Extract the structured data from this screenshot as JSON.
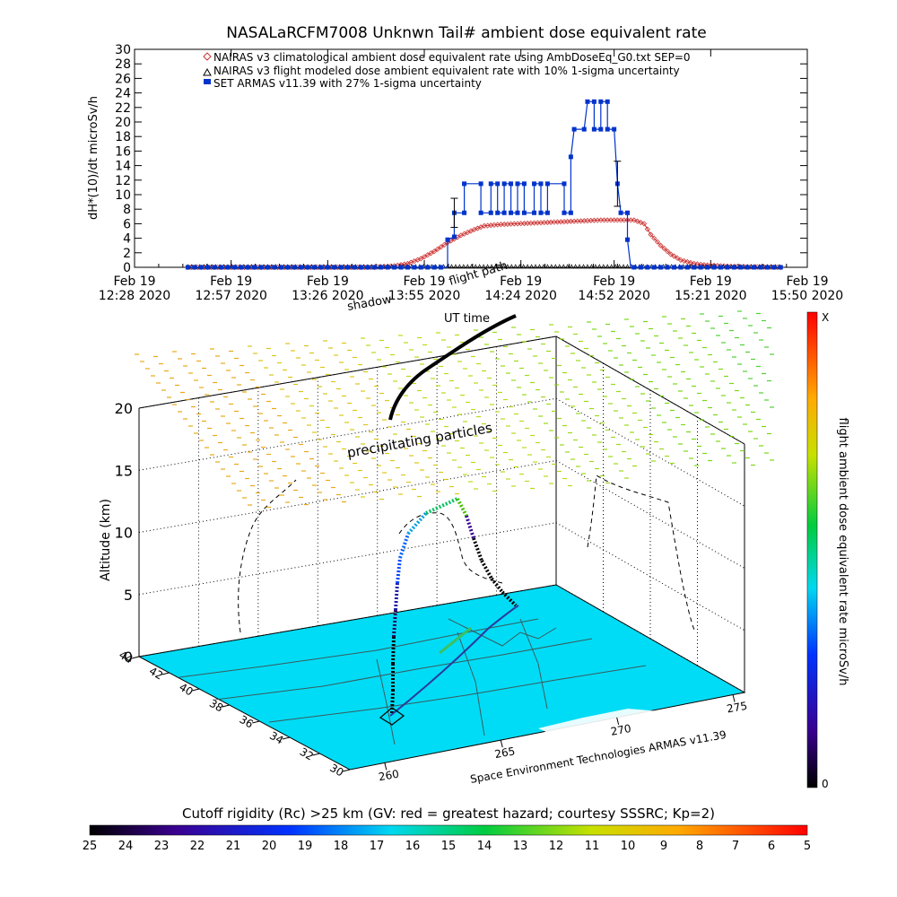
{
  "chart_data": [
    {
      "type": "line",
      "title": "NASALaRCFM7008  Unknwn Tail#  ambient dose equivalent rate",
      "ylabel": "dH*(10)/dt microSv/h",
      "ylim": [
        0,
        30
      ],
      "yticks": [
        0,
        2,
        4,
        6,
        8,
        10,
        12,
        14,
        16,
        18,
        20,
        22,
        24,
        26,
        28,
        30
      ],
      "xlim": [
        0,
        202
      ],
      "xticks": [
        {
          "l1": "Feb 19",
          "l2": "12:28 2020",
          "m": 0
        },
        {
          "l1": "Feb 19",
          "l2": "12:57 2020",
          "m": 29
        },
        {
          "l1": "Feb 19",
          "l2": "13:26 2020",
          "m": 58
        },
        {
          "l1": "Feb 19",
          "l2": "13:55 2020",
          "m": 87
        },
        {
          "l1": "Feb 19",
          "l2": "14:24 2020",
          "m": 116
        },
        {
          "l1": "Feb 19",
          "l2": "14:52 2020",
          "m": 144
        },
        {
          "l1": "Feb 19",
          "l2": "15:21 2020",
          "m": 173
        },
        {
          "l1": "Feb 19",
          "l2": "15:50 2020",
          "m": 202
        }
      ],
      "legend": [
        "NAIRAS v3 climatological ambient dose equivalent rate using AmbDoseEq_G0.txt SEP=0",
        "NAIRAS v3 flight modeled dose ambient equivalent rate with 10% 1-sigma uncertainty",
        "SET ARMAS v11.39 with 27% 1-sigma uncertainty"
      ],
      "series": [
        {
          "name": "NAIRAS v3 climatological ambient dose equivalent rate using AmbDoseEq_G0.txt SEP=0",
          "color": "#cc3333",
          "points": [
            [
              16,
              0
            ],
            [
              24,
              0
            ],
            [
              32,
              0
            ],
            [
              40,
              0
            ],
            [
              48,
              0
            ],
            [
              56,
              0
            ],
            [
              64,
              0
            ],
            [
              72,
              0
            ],
            [
              78,
              0.2
            ],
            [
              82,
              0.5
            ],
            [
              86,
              1.2
            ],
            [
              90,
              2.2
            ],
            [
              94,
              3.4
            ],
            [
              98,
              4.4
            ],
            [
              102,
              5.2
            ],
            [
              105,
              5.7
            ],
            [
              110,
              5.9
            ],
            [
              115,
              6.0
            ],
            [
              120,
              6.1
            ],
            [
              125,
              6.2
            ],
            [
              130,
              6.3
            ],
            [
              135,
              6.4
            ],
            [
              140,
              6.5
            ],
            [
              145,
              6.5
            ],
            [
              150,
              6.5
            ],
            [
              153,
              6.0
            ],
            [
              155,
              4.5
            ],
            [
              158,
              3.0
            ],
            [
              161,
              1.8
            ],
            [
              164,
              1.0
            ],
            [
              168,
              0.5
            ],
            [
              172,
              0.3
            ],
            [
              176,
              0.2
            ],
            [
              180,
              0.1
            ],
            [
              186,
              0.05
            ],
            [
              194,
              0
            ]
          ]
        },
        {
          "name": "NAIRAS v3 flight modeled dose ambient equivalent rate with 10% 1-sigma uncertainty",
          "color": "#000000",
          "points": [
            [
              16,
              0
            ],
            [
              40,
              0
            ],
            [
              70,
              0
            ],
            [
              92,
              0
            ],
            [
              105,
              0
            ],
            [
              125,
              0
            ],
            [
              150,
              0
            ],
            [
              175,
              0
            ],
            [
              194,
              0
            ]
          ]
        },
        {
          "name": "SET ARMAS v11.39 with 27% 1-sigma uncertainty",
          "color": "#0033cc",
          "points": [
            [
              16,
              0
            ],
            [
              40,
              0
            ],
            [
              70,
              0
            ],
            [
              92,
              0
            ],
            [
              94,
              0
            ],
            [
              94,
              3.8
            ],
            [
              96,
              4.2
            ],
            [
              96,
              7.5
            ],
            [
              99,
              7.5
            ],
            [
              99,
              11.5
            ],
            [
              104,
              11.5
            ],
            [
              104,
              7.5
            ],
            [
              107,
              7.5
            ],
            [
              107,
              11.5
            ],
            [
              109,
              11.5
            ],
            [
              109,
              7.5
            ],
            [
              111,
              7.5
            ],
            [
              111,
              11.5
            ],
            [
              113,
              11.5
            ],
            [
              113,
              7.5
            ],
            [
              115,
              7.5
            ],
            [
              115,
              11.5
            ],
            [
              117,
              11.5
            ],
            [
              117,
              7.5
            ],
            [
              120,
              7.5
            ],
            [
              120,
              11.5
            ],
            [
              122,
              11.5
            ],
            [
              122,
              7.5
            ],
            [
              124,
              7.5
            ],
            [
              124,
              11.5
            ],
            [
              129,
              11.5
            ],
            [
              129,
              7.5
            ],
            [
              131,
              7.5
            ],
            [
              131,
              15.2
            ],
            [
              132,
              19
            ],
            [
              135,
              19
            ],
            [
              136,
              22.8
            ],
            [
              138,
              22.8
            ],
            [
              138,
              19
            ],
            [
              140,
              19
            ],
            [
              140,
              22.8
            ],
            [
              142,
              22.8
            ],
            [
              142,
              19
            ],
            [
              144,
              19
            ],
            [
              145,
              11.5
            ],
            [
              146,
              7.5
            ],
            [
              148,
              7.5
            ],
            [
              148,
              3.8
            ],
            [
              149,
              0
            ],
            [
              160,
              0
            ],
            [
              175,
              0
            ],
            [
              194,
              0
            ]
          ]
        }
      ],
      "errorbars": [
        {
          "x": 96,
          "y": 7.5,
          "lo": 5.5,
          "hi": 9.5
        },
        {
          "x": 145,
          "y": 11.5,
          "lo": 8.4,
          "hi": 14.6
        }
      ]
    },
    {
      "type": "scatter",
      "title": "",
      "zlabel": "Altitude (km)",
      "zticks": [
        0,
        5,
        10,
        15,
        20
      ],
      "lat_ticks": [
        "44",
        "42",
        "40",
        "38",
        "36",
        "34",
        "32",
        "30"
      ],
      "lon_ticks": [
        "260",
        "265",
        "270",
        "275"
      ],
      "overlay_labels": [
        "UT time",
        "flight path",
        "shadow",
        "precipitating particles"
      ],
      "colorbar": {
        "title": "flight ambient dose equivalent rate microSv/h",
        "top": "X",
        "bottom": "0"
      },
      "credit": "Space Environment Technologies ARMAS v11.39",
      "trace_altitude_km": [
        0.2,
        1,
        3,
        5,
        7,
        8.5,
        9.5,
        10.5,
        11.4,
        11.7,
        11.2,
        9.8,
        7.8,
        6.2,
        5.2,
        5.0
      ]
    },
    {
      "type": "heatmap",
      "title": "Cutoff rigidity (Rc) >25 km (GV: red = greatest hazard; courtesy SSSRC; Kp=2)",
      "scale_labels": [
        "25",
        "24",
        "23",
        "22",
        "21",
        "20",
        "19",
        "18",
        "17",
        "16",
        "15",
        "14",
        "13",
        "12",
        "11",
        "10",
        "9",
        "8",
        "7",
        "6",
        "5"
      ]
    }
  ]
}
